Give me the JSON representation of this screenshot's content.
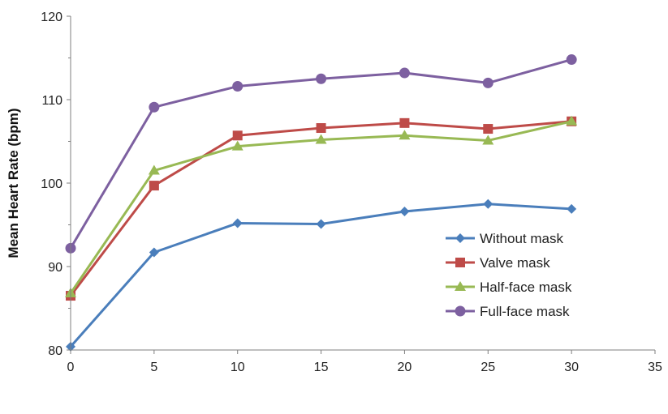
{
  "chart_data": {
    "type": "line",
    "title": "",
    "xlabel": "",
    "ylabel": "Mean Heart Rate (bpm)",
    "xlim": [
      0,
      35
    ],
    "ylim": [
      80,
      120
    ],
    "x_ticks": [
      "0",
      "5",
      "10",
      "15",
      "20",
      "25",
      "30",
      "35"
    ],
    "y_ticks": [
      "80",
      "90",
      "100",
      "110",
      "120"
    ],
    "grid": false,
    "legend_position": "lower-right",
    "x": [
      0,
      5,
      10,
      15,
      20,
      25,
      30
    ],
    "series": [
      {
        "name": "Without mask",
        "color": "#4a7ebb",
        "marker": "diamond",
        "values": [
          80.4,
          91.7,
          95.2,
          95.1,
          96.6,
          97.5,
          96.9
        ]
      },
      {
        "name": "Valve mask",
        "color": "#be4b48",
        "marker": "square",
        "values": [
          86.5,
          99.7,
          105.7,
          106.6,
          107.2,
          106.5,
          107.4
        ]
      },
      {
        "name": "Half-face mask",
        "color": "#98b954",
        "marker": "triangle",
        "values": [
          86.8,
          101.5,
          104.4,
          105.2,
          105.7,
          105.1,
          107.4
        ]
      },
      {
        "name": "Full-face mask",
        "color": "#7d60a0",
        "marker": "circle",
        "values": [
          92.2,
          109.1,
          111.6,
          112.5,
          113.2,
          112.0,
          114.8
        ]
      }
    ]
  }
}
